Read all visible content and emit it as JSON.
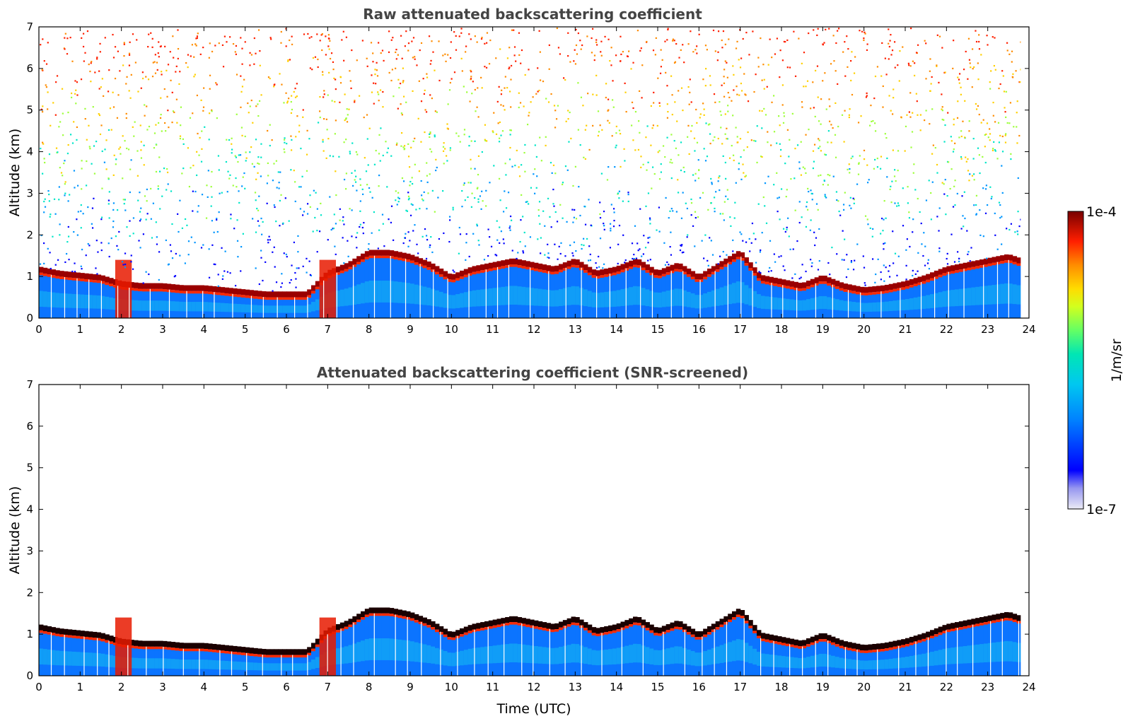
{
  "chart_data": [
    {
      "type": "heatmap",
      "title": "Raw attenuated backscattering coefficient",
      "xlabel": "",
      "ylabel": "Altitude (km)",
      "xlim": [
        0,
        24
      ],
      "ylim": [
        0,
        7
      ],
      "x_ticks": [
        "0",
        "1",
        "2",
        "3",
        "4",
        "5",
        "6",
        "7",
        "8",
        "9",
        "10",
        "11",
        "12",
        "13",
        "14",
        "15",
        "16",
        "17",
        "18",
        "19",
        "20",
        "21",
        "22",
        "23",
        "24"
      ],
      "y_ticks": [
        "0",
        "1",
        "2",
        "3",
        "4",
        "5",
        "6",
        "7"
      ],
      "screened": false,
      "cloud_base_km": {
        "time_utc": [
          0,
          0.5,
          1,
          1.5,
          2,
          2.5,
          3,
          3.5,
          4,
          4.5,
          5,
          5.5,
          6,
          6.5,
          7,
          7.5,
          8,
          8.5,
          9,
          9.5,
          10,
          10.5,
          11,
          11.5,
          12,
          12.5,
          13,
          13.5,
          14,
          14.5,
          15,
          15.5,
          16,
          16.5,
          17,
          17.5,
          18,
          18.5,
          19,
          19.5,
          20,
          20.5,
          21,
          21.5,
          22,
          22.5,
          23,
          23.5,
          23.8
        ],
        "altitude_km": [
          1.1,
          1.0,
          0.95,
          0.9,
          0.75,
          0.7,
          0.7,
          0.65,
          0.65,
          0.6,
          0.55,
          0.5,
          0.5,
          0.5,
          1.0,
          1.2,
          1.5,
          1.5,
          1.4,
          1.2,
          0.9,
          1.1,
          1.2,
          1.3,
          1.2,
          1.1,
          1.3,
          1.0,
          1.1,
          1.3,
          1.0,
          1.2,
          0.9,
          1.2,
          1.5,
          0.9,
          0.8,
          0.7,
          0.9,
          0.7,
          0.6,
          0.65,
          0.75,
          0.9,
          1.1,
          1.2,
          1.3,
          1.4,
          1.3
        ]
      }
    },
    {
      "type": "heatmap",
      "title": "Attenuated backscattering coefficient (SNR-screened)",
      "xlabel": "Time (UTC)",
      "ylabel": "Altitude (km)",
      "xlim": [
        0,
        24
      ],
      "ylim": [
        0,
        7
      ],
      "x_ticks": [
        "0",
        "1",
        "2",
        "3",
        "4",
        "5",
        "6",
        "7",
        "8",
        "9",
        "10",
        "11",
        "12",
        "13",
        "14",
        "15",
        "16",
        "17",
        "18",
        "19",
        "20",
        "21",
        "22",
        "23",
        "24"
      ],
      "y_ticks": [
        "0",
        "1",
        "2",
        "3",
        "4",
        "5",
        "6",
        "7"
      ],
      "screened": true
    }
  ],
  "colorbar": {
    "label": "1/m/sr",
    "max_label": "1e-4",
    "min_label": "1e-7",
    "colormap": [
      "#ebebf5",
      "#0000ff",
      "#0096ff",
      "#00e6c8",
      "#7dff7d",
      "#ffeb00",
      "#ff8c00",
      "#ff1e00",
      "#b40000",
      "#780000"
    ]
  }
}
